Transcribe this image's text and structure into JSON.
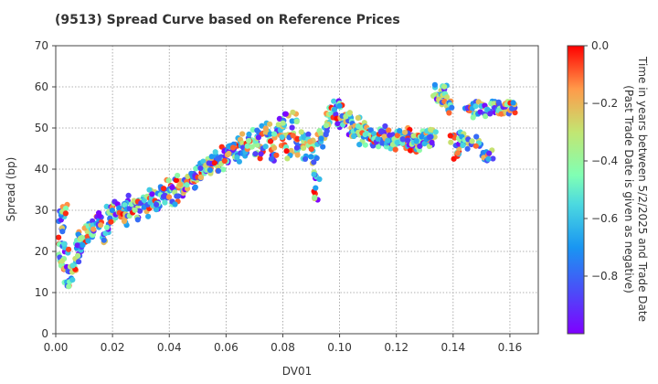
{
  "chart_data": {
    "type": "scatter",
    "title": "(9513)   Spread Curve based on Reference Prices",
    "xlabel": "DV01",
    "ylabel": "Spread (bp)",
    "xlim": [
      0,
      0.17
    ],
    "ylim": [
      0,
      70
    ],
    "x_ticks": [
      "0.00",
      "0.02",
      "0.04",
      "0.06",
      "0.08",
      "0.10",
      "0.12",
      "0.14",
      "0.16"
    ],
    "y_ticks": [
      "0",
      "10",
      "20",
      "30",
      "40",
      "50",
      "60",
      "70"
    ],
    "grid": true,
    "colorbar": {
      "label_line1": "Time in years between 5/2/2025 and Trade Date",
      "label_line2": "(Past Trade Date is given as negative)",
      "range": [
        -1.0,
        0.0
      ],
      "ticks": [
        "0.0",
        "−0.2",
        "−0.4",
        "−0.6",
        "−0.8"
      ],
      "colormap": "rainbow"
    },
    "series": [
      {
        "points": [
          [
            0.002,
            18
          ],
          [
            0.002,
            22
          ],
          [
            0.002,
            26
          ],
          [
            0.002,
            29
          ],
          [
            0.003,
            30
          ],
          [
            0.003,
            17
          ],
          [
            0.004,
            14
          ],
          [
            0.004,
            21
          ],
          [
            0.005,
            13
          ],
          [
            0.006,
            15
          ],
          [
            0.007,
            17
          ],
          [
            0.008,
            20
          ],
          [
            0.008,
            23
          ],
          [
            0.009,
            24
          ],
          [
            0.01,
            22
          ],
          [
            0.011,
            26
          ],
          [
            0.012,
            24
          ],
          [
            0.013,
            25
          ],
          [
            0.014,
            27
          ],
          [
            0.015,
            28
          ],
          [
            0.016,
            27
          ],
          [
            0.017,
            23
          ],
          [
            0.018,
            26
          ],
          [
            0.019,
            30
          ],
          [
            0.02,
            28
          ],
          [
            0.021,
            31
          ],
          [
            0.022,
            29
          ],
          [
            0.023,
            30
          ],
          [
            0.024,
            28
          ],
          [
            0.025,
            32
          ],
          [
            0.026,
            30
          ],
          [
            0.027,
            31
          ],
          [
            0.028,
            29
          ],
          [
            0.029,
            31
          ],
          [
            0.03,
            33
          ],
          [
            0.031,
            32
          ],
          [
            0.032,
            30
          ],
          [
            0.033,
            34
          ],
          [
            0.034,
            32
          ],
          [
            0.035,
            33
          ],
          [
            0.036,
            31
          ],
          [
            0.037,
            35
          ],
          [
            0.038,
            34
          ],
          [
            0.039,
            33
          ],
          [
            0.04,
            36
          ],
          [
            0.041,
            34
          ],
          [
            0.042,
            33
          ],
          [
            0.043,
            37
          ],
          [
            0.044,
            35
          ],
          [
            0.045,
            36
          ],
          [
            0.046,
            36
          ],
          [
            0.047,
            37
          ],
          [
            0.048,
            38
          ],
          [
            0.049,
            37
          ],
          [
            0.05,
            39
          ],
          [
            0.051,
            40
          ],
          [
            0.052,
            39
          ],
          [
            0.053,
            41
          ],
          [
            0.054,
            40
          ],
          [
            0.055,
            41
          ],
          [
            0.056,
            42
          ],
          [
            0.057,
            43
          ],
          [
            0.058,
            41
          ],
          [
            0.059,
            44
          ],
          [
            0.06,
            43
          ],
          [
            0.061,
            45
          ],
          [
            0.062,
            44
          ],
          [
            0.063,
            46
          ],
          [
            0.064,
            43
          ],
          [
            0.065,
            47
          ],
          [
            0.066,
            45
          ],
          [
            0.067,
            44
          ],
          [
            0.068,
            46
          ],
          [
            0.069,
            48
          ],
          [
            0.07,
            45
          ],
          [
            0.071,
            47
          ],
          [
            0.072,
            49
          ],
          [
            0.073,
            44
          ],
          [
            0.074,
            48
          ],
          [
            0.075,
            50
          ],
          [
            0.076,
            46
          ],
          [
            0.077,
            43
          ],
          [
            0.078,
            49
          ],
          [
            0.079,
            51
          ],
          [
            0.08,
            47
          ],
          [
            0.081,
            52
          ],
          [
            0.082,
            44
          ],
          [
            0.083,
            49
          ],
          [
            0.084,
            53
          ],
          [
            0.085,
            46
          ],
          [
            0.086,
            45
          ],
          [
            0.087,
            48
          ],
          [
            0.088,
            44
          ],
          [
            0.089,
            47
          ],
          [
            0.09,
            46
          ],
          [
            0.091,
            43
          ],
          [
            0.092,
            34
          ],
          [
            0.092,
            38
          ],
          [
            0.093,
            47
          ],
          [
            0.094,
            49
          ],
          [
            0.095,
            50
          ],
          [
            0.096,
            52
          ],
          [
            0.097,
            54
          ],
          [
            0.098,
            53
          ],
          [
            0.099,
            55
          ],
          [
            0.1,
            51
          ],
          [
            0.101,
            54
          ],
          [
            0.102,
            52
          ],
          [
            0.103,
            53
          ],
          [
            0.104,
            50
          ],
          [
            0.105,
            49
          ],
          [
            0.106,
            48
          ],
          [
            0.107,
            51
          ],
          [
            0.108,
            47
          ],
          [
            0.109,
            50
          ],
          [
            0.11,
            49
          ],
          [
            0.111,
            47
          ],
          [
            0.112,
            48
          ],
          [
            0.113,
            46
          ],
          [
            0.114,
            48
          ],
          [
            0.115,
            49
          ],
          [
            0.116,
            47
          ],
          [
            0.117,
            45
          ],
          [
            0.118,
            48
          ],
          [
            0.119,
            46
          ],
          [
            0.12,
            47
          ],
          [
            0.121,
            48
          ],
          [
            0.122,
            47
          ],
          [
            0.123,
            46
          ],
          [
            0.124,
            49
          ],
          [
            0.125,
            47
          ],
          [
            0.126,
            45
          ],
          [
            0.127,
            48
          ],
          [
            0.128,
            46
          ],
          [
            0.129,
            47
          ],
          [
            0.13,
            48
          ],
          [
            0.131,
            46
          ],
          [
            0.132,
            47
          ],
          [
            0.133,
            49
          ],
          [
            0.134,
            59
          ],
          [
            0.135,
            58
          ],
          [
            0.136,
            57
          ],
          [
            0.137,
            59
          ],
          [
            0.138,
            56
          ],
          [
            0.139,
            55
          ],
          [
            0.14,
            47
          ],
          [
            0.141,
            43
          ],
          [
            0.142,
            45
          ],
          [
            0.143,
            48
          ],
          [
            0.144,
            47
          ],
          [
            0.145,
            55
          ],
          [
            0.146,
            46
          ],
          [
            0.147,
            55
          ],
          [
            0.148,
            54
          ],
          [
            0.149,
            47
          ],
          [
            0.15,
            55
          ],
          [
            0.151,
            43
          ],
          [
            0.152,
            54
          ],
          [
            0.153,
            43
          ],
          [
            0.154,
            55
          ],
          [
            0.155,
            55
          ],
          [
            0.156,
            54
          ],
          [
            0.157,
            55
          ],
          [
            0.158,
            55
          ],
          [
            0.159,
            55
          ],
          [
            0.16,
            55
          ],
          [
            0.161,
            55
          ]
        ]
      }
    ]
  }
}
